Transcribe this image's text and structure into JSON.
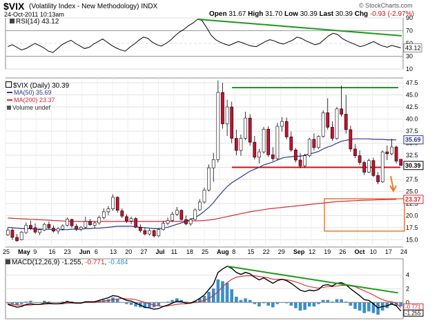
{
  "header": {
    "symbol": "$VIX",
    "name": "(Volatility Index - New Methodology)",
    "exchange": "INDX",
    "date": "24-Oct-2011 10:13am",
    "open_label": "Open",
    "open": "31.67",
    "high_label": "High",
    "high": "31.70",
    "low_label": "Low",
    "low": "30.39",
    "last_label": "Last",
    "last": "30.39",
    "chg_label": "Chg",
    "chg": "-0.93 (-2.97%)",
    "logo": "© StockCharts.com"
  },
  "colors": {
    "up": "#ffffff",
    "down": "#c8102e",
    "ma50": "#2b3990",
    "ma200": "#d8262e",
    "trend": "#1a9a1a",
    "support": "#d01010",
    "box": "#f07820",
    "arrow": "#f07820",
    "macd": "#000000",
    "signal": "#d8262e",
    "hist": "#3c8fc8"
  },
  "chart_data": [
    {
      "type": "line",
      "panel": "RSI",
      "label": "RSI(14) 43.12",
      "last": "43.12",
      "y_ticks": [
        "90",
        "70",
        "50",
        "30",
        "10"
      ],
      "ylim": [
        10,
        90
      ],
      "values": [
        45,
        48,
        44,
        40,
        42,
        46,
        50,
        47,
        43,
        38,
        36,
        42,
        48,
        52,
        55,
        50,
        46,
        42,
        44,
        49,
        53,
        57,
        52,
        47,
        43,
        40,
        38,
        44,
        49,
        55,
        60,
        58,
        52,
        48,
        46,
        50,
        55,
        62,
        68,
        72,
        78,
        82,
        88,
        86,
        75,
        63,
        56,
        52,
        49,
        47,
        50,
        53,
        51,
        48,
        46,
        45,
        49,
        53,
        56,
        54,
        51,
        49,
        52,
        55,
        60,
        58,
        54,
        51,
        48,
        50,
        56,
        62,
        66,
        64,
        58,
        54,
        51,
        48,
        45,
        47,
        50,
        53,
        49,
        46,
        44,
        47,
        45,
        43.12
      ]
    },
    {
      "type": "candlestick",
      "panel": "Price",
      "legend": [
        "$VIX (Daily) 30.39",
        "MA(50) 35.69",
        "MA(200) 23.37",
        "Volume undef"
      ],
      "y_ticks": [
        "47.5",
        "45.0",
        "42.5",
        "40.0",
        "37.5",
        "35.0",
        "32.5",
        "30.0",
        "27.5",
        "25.0",
        "22.5",
        "20.0",
        "17.5",
        "15.0"
      ],
      "ylim": [
        13.5,
        48.5
      ],
      "x_labels": [
        "25",
        "May",
        "9",
        "16",
        "23",
        "Jun",
        "6",
        "13",
        "20",
        "27",
        "Jul",
        "11",
        "18",
        "25",
        "Aug",
        "8",
        "15",
        "22",
        "29",
        "Sep",
        "12",
        "19",
        "26",
        "Oct",
        "10",
        "17",
        "24"
      ],
      "ohlc": [
        [
          16.0,
          17.5,
          15.8,
          17.0
        ],
        [
          17.0,
          17.5,
          15.0,
          15.5
        ],
        [
          15.5,
          16.2,
          14.6,
          14.8
        ],
        [
          15.0,
          16.8,
          14.9,
          16.6
        ],
        [
          16.5,
          18.6,
          16.2,
          18.0
        ],
        [
          18.0,
          19.0,
          17.0,
          17.4
        ],
        [
          17.5,
          18.4,
          16.2,
          16.6
        ],
        [
          16.5,
          17.3,
          16.0,
          17.1
        ],
        [
          17.0,
          18.5,
          16.8,
          18.2
        ],
        [
          18.2,
          18.8,
          17.2,
          17.5
        ],
        [
          17.4,
          18.0,
          16.5,
          16.8
        ],
        [
          16.8,
          17.6,
          16.2,
          17.3
        ],
        [
          17.2,
          18.2,
          16.9,
          17.9
        ],
        [
          18.0,
          19.6,
          17.8,
          19.3
        ],
        [
          19.2,
          19.4,
          17.5,
          17.9
        ],
        [
          17.8,
          18.3,
          16.8,
          17.2
        ],
        [
          17.2,
          17.9,
          16.8,
          17.6
        ],
        [
          17.6,
          19.8,
          17.3,
          18.8
        ],
        [
          18.8,
          19.3,
          17.9,
          18.1
        ],
        [
          18.0,
          18.8,
          17.4,
          18.5
        ],
        [
          18.5,
          20.0,
          18.1,
          19.6
        ],
        [
          19.6,
          21.5,
          19.2,
          20.8
        ],
        [
          20.8,
          22.0,
          20.1,
          21.4
        ],
        [
          21.4,
          24.4,
          21.0,
          23.8
        ],
        [
          23.8,
          24.0,
          20.6,
          21.1
        ],
        [
          21.0,
          21.5,
          19.5,
          19.9
        ],
        [
          19.8,
          20.3,
          18.5,
          18.9
        ],
        [
          18.9,
          19.8,
          18.2,
          19.4
        ],
        [
          19.4,
          19.7,
          17.4,
          17.6
        ],
        [
          17.6,
          18.2,
          16.5,
          16.9
        ],
        [
          16.9,
          17.5,
          15.9,
          16.2
        ],
        [
          16.2,
          17.3,
          15.9,
          16.9
        ],
        [
          16.9,
          17.1,
          15.5,
          15.8
        ],
        [
          15.8,
          17.4,
          15.6,
          17.1
        ],
        [
          17.1,
          18.9,
          16.9,
          18.4
        ],
        [
          18.4,
          19.6,
          18.0,
          19.0
        ],
        [
          19.0,
          20.8,
          18.7,
          20.3
        ],
        [
          20.3,
          21.8,
          19.9,
          21.1
        ],
        [
          21.1,
          21.3,
          19.0,
          19.2
        ],
        [
          19.2,
          20.0,
          18.0,
          18.3
        ],
        [
          18.3,
          19.5,
          17.9,
          19.2
        ],
        [
          19.2,
          21.5,
          19.0,
          21.2
        ],
        [
          21.2,
          23.4,
          21.0,
          22.8
        ],
        [
          22.8,
          25.8,
          22.5,
          25.3
        ],
        [
          25.3,
          30.6,
          25.0,
          29.9
        ],
        [
          29.9,
          33.0,
          27.0,
          31.6
        ],
        [
          31.6,
          48.0,
          31.0,
          45.5
        ],
        [
          45.5,
          47.5,
          38.0,
          39.0
        ],
        [
          39.0,
          44.0,
          36.5,
          42.5
        ],
        [
          42.5,
          43.6,
          35.0,
          36.0
        ],
        [
          36.0,
          37.8,
          32.5,
          33.5
        ],
        [
          33.5,
          36.8,
          32.4,
          36.0
        ],
        [
          36.0,
          41.5,
          35.6,
          40.2
        ],
        [
          40.2,
          41.0,
          34.5,
          35.2
        ],
        [
          35.2,
          36.5,
          31.6,
          32.1
        ],
        [
          32.1,
          33.8,
          30.8,
          33.2
        ],
        [
          33.2,
          38.4,
          32.8,
          37.9
        ],
        [
          37.9,
          38.5,
          32.2,
          32.6
        ],
        [
          32.6,
          34.2,
          31.3,
          31.8
        ],
        [
          31.8,
          39.2,
          31.5,
          38.5
        ],
        [
          38.5,
          40.4,
          37.4,
          39.5
        ],
        [
          39.5,
          40.3,
          35.8,
          36.3
        ],
        [
          36.3,
          37.4,
          33.2,
          33.6
        ],
        [
          33.6,
          34.0,
          31.0,
          31.5
        ],
        [
          31.5,
          33.0,
          29.8,
          30.3
        ],
        [
          30.3,
          32.8,
          29.9,
          32.4
        ],
        [
          32.4,
          36.1,
          32.1,
          35.8
        ],
        [
          35.8,
          37.0,
          33.5,
          34.1
        ],
        [
          34.1,
          36.6,
          33.8,
          36.4
        ],
        [
          36.4,
          41.8,
          36.1,
          41.3
        ],
        [
          41.3,
          44.3,
          37.8,
          38.3
        ],
        [
          38.3,
          39.5,
          35.5,
          36.0
        ],
        [
          36.0,
          42.5,
          35.7,
          42.1
        ],
        [
          42.1,
          46.9,
          40.5,
          41.0
        ],
        [
          41.0,
          45.0,
          37.0,
          37.8
        ],
        [
          37.8,
          38.6,
          33.2,
          33.8
        ],
        [
          33.8,
          34.8,
          31.9,
          32.4
        ],
        [
          32.4,
          33.5,
          30.5,
          31.0
        ],
        [
          31.0,
          31.4,
          28.4,
          29.0
        ],
        [
          29.0,
          31.8,
          28.8,
          31.4
        ],
        [
          31.4,
          32.0,
          28.0,
          28.3
        ],
        [
          28.3,
          29.0,
          26.5,
          27.0
        ],
        [
          27.0,
          33.5,
          26.8,
          33.2
        ],
        [
          33.2,
          34.5,
          31.5,
          32.8
        ],
        [
          32.8,
          35.9,
          32.5,
          34.2
        ],
        [
          34.2,
          34.5,
          30.8,
          31.3
        ],
        [
          31.67,
          31.7,
          30.39,
          30.39
        ]
      ],
      "ma50": [
        17.6,
        17.5,
        17.4,
        17.3,
        17.3,
        17.3,
        17.2,
        17.2,
        17.2,
        17.2,
        17.1,
        17.1,
        17.1,
        17.1,
        17.2,
        17.2,
        17.2,
        17.3,
        17.3,
        17.4,
        17.4,
        17.5,
        17.6,
        17.7,
        17.8,
        17.8,
        17.8,
        17.8,
        17.7,
        17.6,
        17.5,
        17.4,
        17.3,
        17.3,
        17.4,
        17.6,
        17.9,
        18.2,
        18.5,
        18.8,
        19.2,
        19.6,
        20.2,
        20.9,
        21.7,
        22.7,
        23.9,
        25.0,
        26.0,
        26.8,
        27.4,
        28.0,
        28.6,
        29.2,
        29.6,
        30.0,
        30.5,
        30.8,
        31.1,
        31.5,
        31.9,
        32.1,
        32.2,
        32.3,
        32.3,
        32.5,
        32.8,
        33.0,
        33.3,
        33.8,
        34.2,
        34.5,
        35.0,
        35.4,
        35.6,
        35.8,
        35.9,
        35.9,
        35.9,
        35.9,
        35.8,
        35.8,
        35.8,
        35.7,
        35.7,
        35.69
      ],
      "ma200": [
        19.5,
        19.45,
        19.4,
        19.35,
        19.3,
        19.25,
        19.2,
        19.15,
        19.1,
        19.05,
        19.0,
        18.95,
        18.9,
        18.85,
        18.8,
        18.8,
        18.8,
        18.8,
        18.8,
        18.8,
        18.8,
        18.8,
        18.8,
        18.8,
        18.8,
        18.8,
        18.8,
        18.8,
        18.8,
        18.8,
        18.8,
        18.8,
        18.8,
        18.8,
        18.8,
        18.8,
        18.8,
        18.8,
        18.85,
        18.85,
        18.9,
        18.9,
        18.95,
        19.0,
        19.1,
        19.2,
        19.4,
        19.6,
        19.8,
        20.0,
        20.2,
        20.4,
        20.6,
        20.8,
        20.95,
        21.1,
        21.25,
        21.4,
        21.5,
        21.6,
        21.7,
        21.8,
        21.9,
        22.0,
        22.1,
        22.2,
        22.3,
        22.4,
        22.5,
        22.6,
        22.7,
        22.8,
        22.9,
        22.95,
        23.0,
        23.05,
        23.1,
        23.15,
        23.2,
        23.22,
        23.25,
        23.28,
        23.3,
        23.32,
        23.35,
        23.37
      ],
      "ma50_last": "35.69",
      "ma200_last": "23.37",
      "last_close": "30.39",
      "annotations": {
        "resistance": 46.5,
        "support": 30.0,
        "target_box": [
          16.8,
          23.5
        ]
      }
    },
    {
      "type": "line",
      "panel": "MACD",
      "label": "MACD(12,26,9) -1.255, -0.771, -0.484",
      "label_parts": {
        "prefix": "MACD(12,26,9) ",
        "macd": "-1.255",
        ",_1": ", ",
        "signal": "-0.771",
        ",_2": ", ",
        "hist": "-0.484"
      },
      "y_ticks": [
        "4",
        "2",
        "0"
      ],
      "ylim": [
        -2.4,
        6.4
      ],
      "right_values": [
        "-0.771",
        "-1.255"
      ],
      "macd": [
        -0.3,
        -0.5,
        -0.7,
        -0.6,
        -0.3,
        -0.2,
        -0.3,
        -0.3,
        -0.1,
        -0.1,
        -0.2,
        -0.2,
        -0.1,
        0.1,
        0.0,
        -0.1,
        -0.1,
        0.1,
        0.1,
        0.1,
        0.3,
        0.5,
        0.7,
        1.0,
        0.9,
        0.6,
        0.3,
        0.2,
        -0.1,
        -0.4,
        -0.7,
        -0.8,
        -1.0,
        -0.9,
        -0.6,
        -0.4,
        -0.1,
        0.2,
        0.1,
        -0.1,
        -0.1,
        0.2,
        0.6,
        1.1,
        1.9,
        2.7,
        4.4,
        4.9,
        5.3,
        5.0,
        4.4,
        4.1,
        4.4,
        4.2,
        3.7,
        3.3,
        3.6,
        3.2,
        2.8,
        3.2,
        3.4,
        3.2,
        2.8,
        2.3,
        1.8,
        1.6,
        1.8,
        1.7,
        1.9,
        2.5,
        2.6,
        2.4,
        2.8,
        2.9,
        2.6,
        2.0,
        1.5,
        1.0,
        0.4,
        0.3,
        -0.2,
        -0.8,
        -0.6,
        -0.5,
        -0.2,
        -0.5,
        -1.255
      ],
      "signal": [
        -0.2,
        -0.3,
        -0.4,
        -0.4,
        -0.4,
        -0.4,
        -0.3,
        -0.3,
        -0.3,
        -0.2,
        -0.2,
        -0.2,
        -0.2,
        -0.1,
        -0.1,
        -0.1,
        -0.1,
        0.0,
        0.0,
        0.0,
        0.1,
        0.2,
        0.3,
        0.4,
        0.5,
        0.6,
        0.5,
        0.5,
        0.4,
        0.2,
        0.0,
        -0.2,
        -0.4,
        -0.5,
        -0.6,
        -0.5,
        -0.4,
        -0.3,
        -0.2,
        -0.2,
        -0.1,
        0.0,
        0.1,
        0.3,
        0.6,
        1.0,
        1.6,
        2.3,
        2.9,
        3.4,
        3.7,
        3.8,
        3.9,
        3.9,
        3.9,
        3.8,
        3.7,
        3.6,
        3.4,
        3.4,
        3.4,
        3.3,
        3.2,
        3.0,
        2.8,
        2.5,
        2.3,
        2.2,
        2.1,
        2.2,
        2.3,
        2.3,
        2.4,
        2.5,
        2.5,
        2.4,
        2.3,
        2.0,
        1.7,
        1.4,
        1.1,
        0.7,
        0.4,
        0.2,
        0.1,
        -0.1,
        -0.771
      ]
    }
  ]
}
